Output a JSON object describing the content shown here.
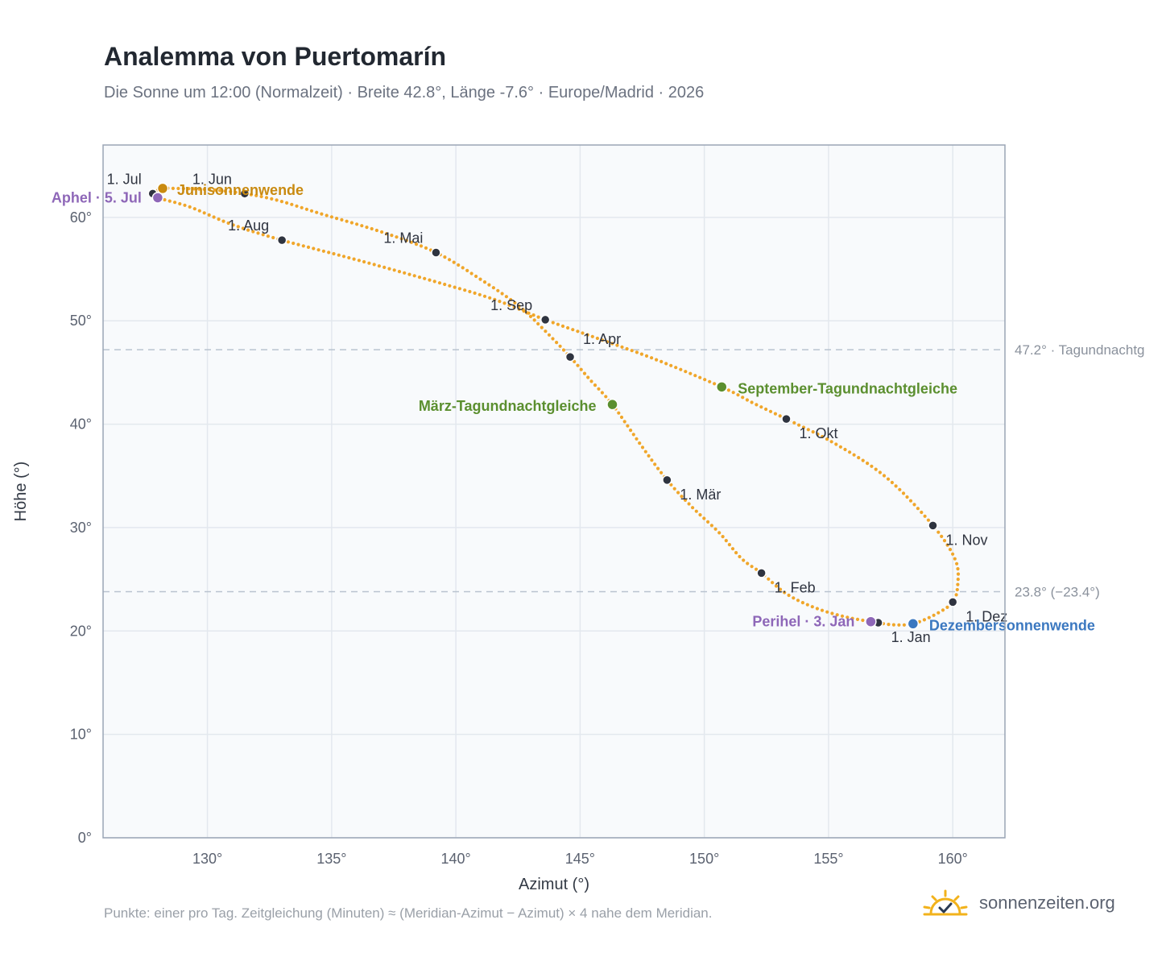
{
  "header": {
    "title": "Analemma von Puertomarín",
    "subtitle": "Die Sonne um 12:00 (Normalzeit) · Breite 42.8°, Länge -7.6° · Europe/Madrid · 2026"
  },
  "footer": {
    "note": "Punkte: einer pro Tag. Zeitgleichung (Minuten) ≈ (Meridian-Azimut − Azimut) × 4 nahe dem Meridian.",
    "brand": "sonnenzeiten.org",
    "brand_icon": "sun-check-icon"
  },
  "colors": {
    "curve": "#f0a62a",
    "month_marker": "#2f3440",
    "solstice_june": "#c98a10",
    "solstice_december": "#3b78c0",
    "equinox": "#5b8f2f",
    "apsis": "#8e67b8",
    "reference_line": "#b9c3cf",
    "plot_bg": "#f8fafc",
    "frame": "#9aa5b5"
  },
  "chart_data": {
    "type": "scatter",
    "xlabel": "Azimut (°)",
    "ylabel": "Höhe (°)",
    "xlim": [
      125.8,
      162.1
    ],
    "ylim": [
      0,
      67
    ],
    "x_ticks": [
      130,
      135,
      140,
      145,
      150,
      155,
      160
    ],
    "x_tick_labels": [
      "130°",
      "135°",
      "140°",
      "145°",
      "150°",
      "155°",
      "160°"
    ],
    "y_ticks": [
      0,
      10,
      20,
      30,
      40,
      50,
      60
    ],
    "y_tick_labels": [
      "0°",
      "10°",
      "20°",
      "30°",
      "40°",
      "50°",
      "60°"
    ],
    "grid": true,
    "reference_lines": [
      {
        "y": 47.2,
        "label": "47.2° · Tagundnachtg"
      },
      {
        "y": 23.8,
        "label": "23.8° (−23.4°)"
      }
    ],
    "month_markers": [
      {
        "label": "1. Jan",
        "az": 157.0,
        "alt": 20.8
      },
      {
        "label": "1. Feb",
        "az": 152.3,
        "alt": 25.6
      },
      {
        "label": "1. Mär",
        "az": 148.5,
        "alt": 34.6
      },
      {
        "label": "1. Apr",
        "az": 144.6,
        "alt": 46.5
      },
      {
        "label": "1. Mai",
        "az": 139.2,
        "alt": 56.6
      },
      {
        "label": "1. Jun",
        "az": 131.5,
        "alt": 62.3
      },
      {
        "label": "1. Jul",
        "az": 127.8,
        "alt": 62.3
      },
      {
        "label": "1. Aug",
        "az": 133.0,
        "alt": 57.8
      },
      {
        "label": "1. Sep",
        "az": 143.6,
        "alt": 50.1
      },
      {
        "label": "1. Okt",
        "az": 153.3,
        "alt": 40.5
      },
      {
        "label": "1. Nov",
        "az": 159.2,
        "alt": 30.2
      },
      {
        "label": "1. Dez",
        "az": 160.0,
        "alt": 22.8
      }
    ],
    "events": [
      {
        "label": "Junisonnenwende",
        "az": 128.2,
        "alt": 62.8,
        "kind": "solstice_june"
      },
      {
        "label": "Dezembersonnenwende",
        "az": 158.4,
        "alt": 20.7,
        "kind": "solstice_december"
      },
      {
        "label": "März-Tagundnachtgleiche",
        "az": 146.3,
        "alt": 41.9,
        "kind": "equinox"
      },
      {
        "label": "September-Tagundnachtgleiche",
        "az": 150.7,
        "alt": 43.6,
        "kind": "equinox"
      },
      {
        "label": "Aphel · 5. Jul",
        "az": 128.0,
        "alt": 61.9,
        "kind": "apsis"
      },
      {
        "label": "Perihel · 3. Jan",
        "az": 156.7,
        "alt": 20.9,
        "kind": "apsis"
      }
    ],
    "path": [
      {
        "az": 157.0,
        "alt": 20.8
      },
      {
        "az": 155.8,
        "alt": 21.3
      },
      {
        "az": 154.5,
        "alt": 22.2
      },
      {
        "az": 153.3,
        "alt": 23.6
      },
      {
        "az": 152.3,
        "alt": 25.6
      },
      {
        "az": 151.5,
        "alt": 27.0
      },
      {
        "az": 150.6,
        "alt": 29.5
      },
      {
        "az": 149.5,
        "alt": 32.0
      },
      {
        "az": 148.5,
        "alt": 34.6
      },
      {
        "az": 147.5,
        "alt": 37.8
      },
      {
        "az": 146.3,
        "alt": 41.9
      },
      {
        "az": 145.4,
        "alt": 44.3
      },
      {
        "az": 144.6,
        "alt": 46.5
      },
      {
        "az": 143.6,
        "alt": 49.0
      },
      {
        "az": 142.5,
        "alt": 51.5
      },
      {
        "az": 141.0,
        "alt": 54.0
      },
      {
        "az": 139.2,
        "alt": 56.6
      },
      {
        "az": 137.0,
        "alt": 58.6
      },
      {
        "az": 134.5,
        "alt": 60.4
      },
      {
        "az": 132.9,
        "alt": 61.6
      },
      {
        "az": 131.5,
        "alt": 62.3
      },
      {
        "az": 130.0,
        "alt": 62.7
      },
      {
        "az": 128.6,
        "alt": 62.8
      },
      {
        "az": 128.2,
        "alt": 62.8
      },
      {
        "az": 127.8,
        "alt": 62.3
      },
      {
        "az": 128.0,
        "alt": 61.9
      },
      {
        "az": 129.3,
        "alt": 61.0
      },
      {
        "az": 131.0,
        "alt": 59.3
      },
      {
        "az": 133.0,
        "alt": 57.8
      },
      {
        "az": 136.0,
        "alt": 55.9
      },
      {
        "az": 139.0,
        "alt": 53.9
      },
      {
        "az": 141.5,
        "alt": 52.1
      },
      {
        "az": 143.6,
        "alt": 50.1
      },
      {
        "az": 145.7,
        "alt": 48.3
      },
      {
        "az": 148.0,
        "alt": 46.3
      },
      {
        "az": 150.7,
        "alt": 43.6
      },
      {
        "az": 152.0,
        "alt": 42.0
      },
      {
        "az": 153.3,
        "alt": 40.5
      },
      {
        "az": 155.2,
        "alt": 38.2
      },
      {
        "az": 157.3,
        "alt": 34.9
      },
      {
        "az": 159.2,
        "alt": 30.2
      },
      {
        "az": 160.1,
        "alt": 26.9
      },
      {
        "az": 160.2,
        "alt": 24.5
      },
      {
        "az": 160.0,
        "alt": 22.8
      },
      {
        "az": 159.3,
        "alt": 21.6
      },
      {
        "az": 158.4,
        "alt": 20.7
      },
      {
        "az": 157.6,
        "alt": 20.6
      },
      {
        "az": 157.0,
        "alt": 20.8
      }
    ]
  }
}
